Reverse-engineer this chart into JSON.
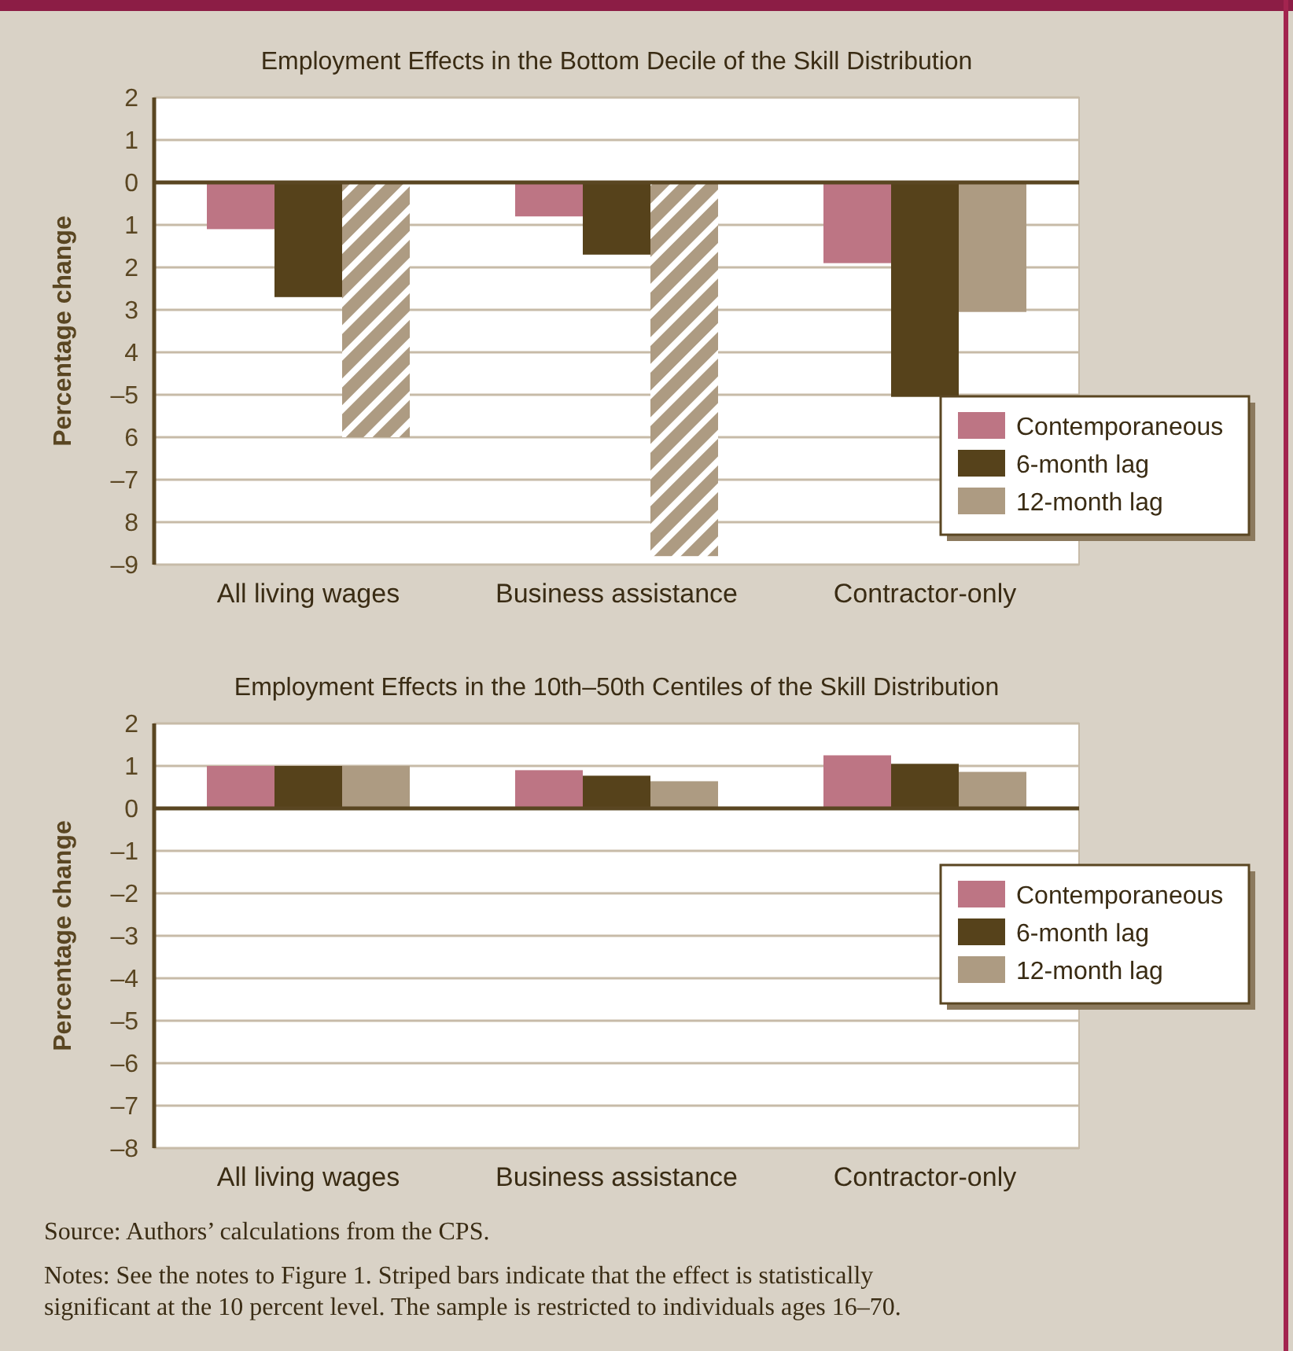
{
  "chart_data": [
    {
      "type": "bar",
      "title": "Employment Effects in the Bottom Decile of the Skill Distribution",
      "ylabel": "Percentage change",
      "categories": [
        "All living wages",
        "Business assistance",
        "Contractor-only"
      ],
      "series": [
        {
          "name": "Contemporaneous",
          "color": "#bd7584",
          "values": [
            -1.1,
            -0.8,
            -1.9
          ]
        },
        {
          "name": "6-month lag",
          "color": "#56421b",
          "values": [
            -2.7,
            -1.7,
            -5.05
          ]
        },
        {
          "name": "12-month lag",
          "color": "#ad9b82",
          "values": [
            -6.0,
            -8.8,
            -3.05
          ],
          "colors": [
            "#d1c6b6",
            "#d1c6b6",
            "#ad9b82"
          ]
        }
      ],
      "ylim": [
        -9,
        2
      ],
      "yticks": [
        2,
        1,
        0,
        {
          "value": -1,
          "label": "1"
        },
        {
          "value": -2,
          "label": "2"
        },
        {
          "value": -3,
          "label": "3"
        },
        {
          "value": -4,
          "label": "4"
        },
        {
          "value": -5,
          "label": "–5"
        },
        {
          "value": -6,
          "label": "6"
        },
        {
          "value": -7,
          "label": "–7"
        },
        {
          "value": -8,
          "label": "8"
        },
        {
          "value": -9,
          "label": "–9"
        }
      ],
      "grid": "y",
      "legend": "right"
    },
    {
      "type": "bar",
      "title": "Employment Effects in the 10th–50th Centiles of the Skill Distribution",
      "ylabel": "Percentage change",
      "categories": [
        "All living wages",
        "Business assistance",
        "Contractor-only"
      ],
      "series": [
        {
          "name": "Contemporaneous",
          "color": "#bd7584",
          "values": [
            1.0,
            0.9,
            1.25
          ]
        },
        {
          "name": "6-month lag",
          "color": "#56421b",
          "values": [
            1.0,
            0.77,
            1.05
          ]
        },
        {
          "name": "12-month lag",
          "color": "#ad9b82",
          "values": [
            1.0,
            0.64,
            0.86
          ]
        }
      ],
      "ylim": [
        -8,
        2
      ],
      "yticks": [
        2,
        1,
        0,
        {
          "value": -1,
          "label": "–1"
        },
        {
          "value": -2,
          "label": "–2"
        },
        {
          "value": -3,
          "label": "–3"
        },
        {
          "value": -4,
          "label": "–4"
        },
        {
          "value": -5,
          "label": "–5"
        },
        {
          "value": -6,
          "label": "–6"
        },
        {
          "value": -7,
          "label": "–7"
        },
        {
          "value": -8,
          "label": "–8"
        }
      ],
      "grid": "y",
      "legend": "right",
      "annotations": [
        "Source: Authors’ calculations from the CPS.",
        "Notes: See the notes to Figure 1. Striped bars indicate that the effect is statistically significant at the 10 percent level. The sample is restricted to individuals ages 16–70."
      ]
    }
  ]
}
